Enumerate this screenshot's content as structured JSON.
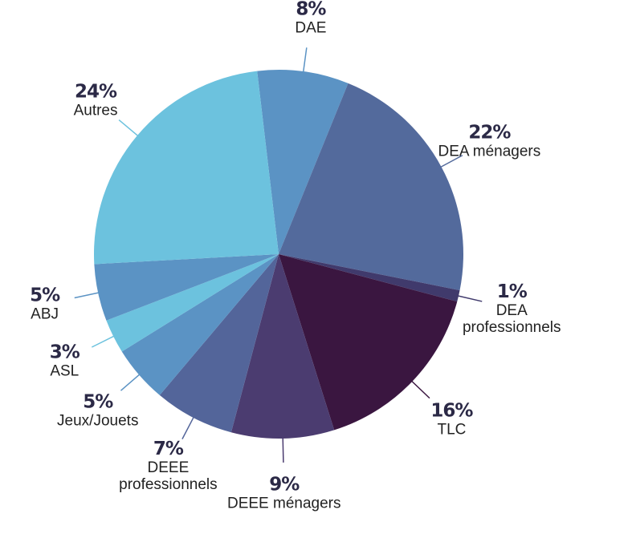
{
  "chart_data": {
    "type": "pie",
    "categories": [
      "DAE",
      "DEA ménagers",
      "DEA professionnels",
      "TLC",
      "DEEE ménagers",
      "DEEE professionnels",
      "Jeux/Jouets",
      "ASL",
      "ABJ",
      "Autres"
    ],
    "values": [
      8,
      22,
      1,
      16,
      9,
      7,
      5,
      3,
      5,
      24
    ],
    "value_labels": [
      "8%",
      "22%",
      "1%",
      "16%",
      "9%",
      "7%",
      "5%",
      "3%",
      "5%",
      "24%"
    ],
    "colors": [
      "#5b93c4",
      "#536a9c",
      "#403a6c",
      "#3a1640",
      "#4b3c70",
      "#53659a",
      "#5b93c4",
      "#6cc2de",
      "#5b93c4",
      "#6cc2de"
    ]
  }
}
